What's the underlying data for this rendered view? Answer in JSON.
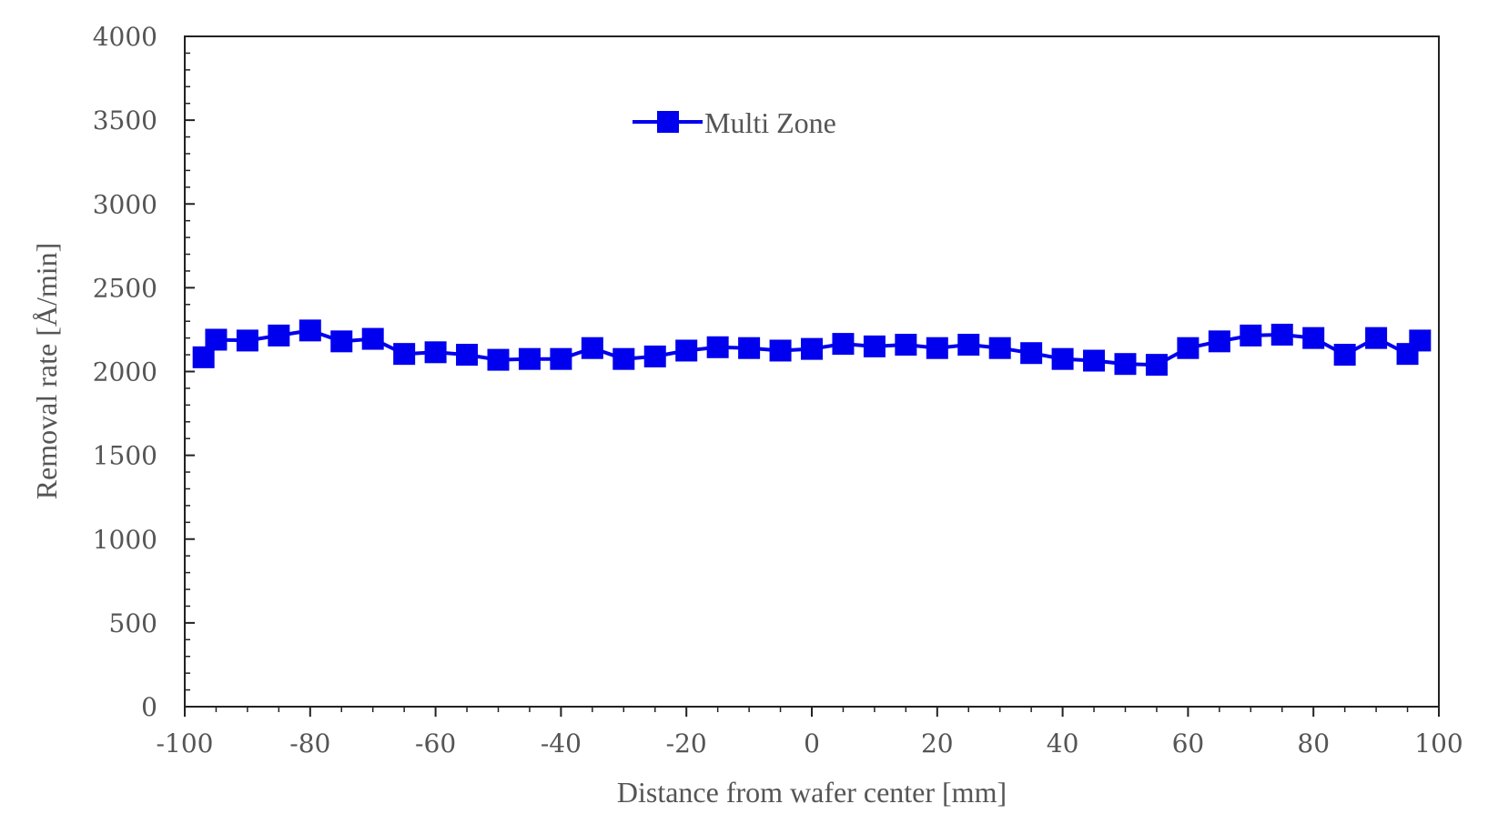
{
  "chart_data": {
    "type": "line",
    "title": "",
    "xlabel": "Distance from wafer center [mm]",
    "ylabel": "Removal rate [Å/min]",
    "xlim": [
      -100,
      100
    ],
    "ylim": [
      0,
      4000
    ],
    "x_ticks": [
      -100,
      -80,
      -60,
      -40,
      -20,
      0,
      20,
      40,
      60,
      80,
      100
    ],
    "y_ticks": [
      0,
      500,
      1000,
      1500,
      2000,
      2500,
      3000,
      3500,
      4000
    ],
    "x_tick_labels": [
      "-100",
      "-80",
      "-60",
      "-40",
      "-20",
      "0",
      "20",
      "40",
      "60",
      "80",
      "100"
    ],
    "y_tick_labels": [
      "0",
      "500",
      "1000",
      "1500",
      "2000",
      "2500",
      "3000",
      "3500",
      "4000"
    ],
    "grid": false,
    "legend_position": "top-center",
    "series": [
      {
        "name": "Multi Zone",
        "color": "#0000ee",
        "marker": "square",
        "x": [
          -97,
          -95,
          -90,
          -85,
          -80,
          -75,
          -70,
          -65,
          -60,
          -55,
          -50,
          -45,
          -40,
          -35,
          -30,
          -25,
          -20,
          -15,
          -10,
          -5,
          0,
          5,
          10,
          15,
          20,
          25,
          30,
          35,
          40,
          45,
          50,
          55,
          60,
          65,
          70,
          75,
          80,
          85,
          90,
          95,
          97
        ],
        "y": [
          2085,
          2190,
          2185,
          2215,
          2245,
          2180,
          2195,
          2105,
          2115,
          2100,
          2070,
          2075,
          2075,
          2140,
          2075,
          2090,
          2125,
          2145,
          2140,
          2125,
          2135,
          2165,
          2150,
          2160,
          2140,
          2160,
          2140,
          2110,
          2075,
          2065,
          2045,
          2040,
          2140,
          2180,
          2215,
          2220,
          2200,
          2100,
          2200,
          2105,
          2185
        ]
      }
    ]
  }
}
